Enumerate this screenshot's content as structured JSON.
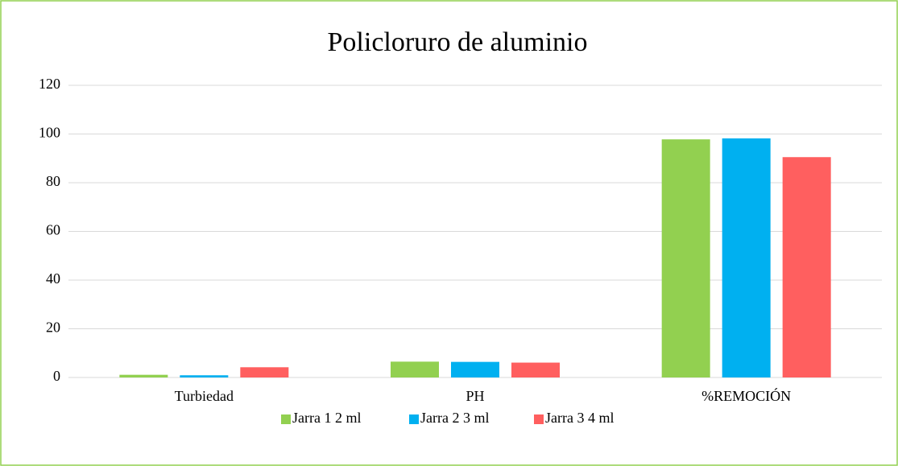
{
  "chart_data": {
    "type": "bar",
    "title": "Policloruro de aluminio",
    "categories": [
      "Turbiedad",
      "PH",
      "%REMOCIÓN"
    ],
    "series": [
      {
        "name": "Jarra 1 2 ml",
        "color": "#92d050",
        "values": [
          1.1,
          6.5,
          97.8
        ]
      },
      {
        "name": "Jarra 2 3 ml",
        "color": "#00b0f0",
        "values": [
          0.9,
          6.4,
          98.2
        ]
      },
      {
        "name": "Jarra 3 4 ml",
        "color": "#ff5f5f",
        "values": [
          4.2,
          6.1,
          90.5
        ]
      }
    ],
    "ylim": [
      0,
      120
    ],
    "yticks": [
      0,
      20,
      40,
      60,
      80,
      100,
      120
    ],
    "grid": true,
    "legend": "bottom"
  }
}
